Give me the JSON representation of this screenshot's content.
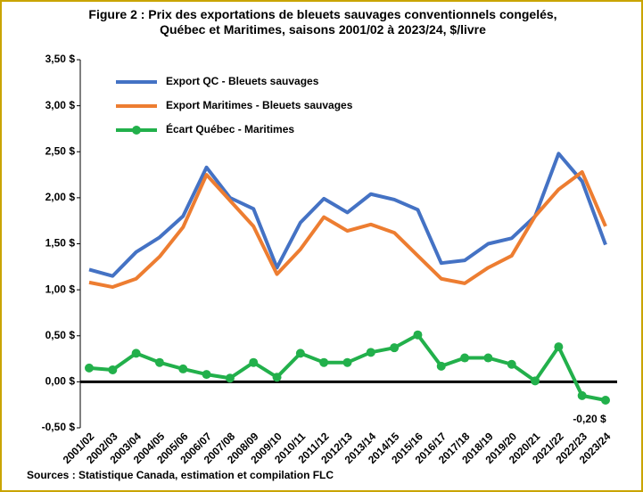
{
  "chart_data": {
    "type": "line",
    "title": "Figure 2 : Prix des exportations de bleuets sauvages conventionnels congelés, Québec et Maritimes, saisons 2001/02 à 2023/24, $/livre",
    "source": "Sources : Statistique Canada, estimation et compilation FLC",
    "categories": [
      "2001/02",
      "2002/03",
      "2003/04",
      "2004/05",
      "2005/06",
      "2006/07",
      "2007/08",
      "2008/09",
      "2009/10",
      "2010/11",
      "2011/12",
      "2012/13",
      "2013/14",
      "2014/15",
      "2015/16",
      "2016/17",
      "2017/18",
      "2018/19",
      "2019/20",
      "2020/21",
      "2021/22",
      "2022/23",
      "2023/24"
    ],
    "series": [
      {
        "name": "Export QC - Bleuets sauvages",
        "color": "#4472c4",
        "markers": false,
        "values": [
          1.22,
          1.15,
          1.41,
          1.57,
          1.8,
          2.33,
          2.0,
          1.88,
          1.24,
          1.73,
          1.99,
          1.84,
          2.04,
          1.98,
          1.87,
          1.29,
          1.32,
          1.5,
          1.56,
          1.8,
          2.48,
          2.18,
          1.49
        ]
      },
      {
        "name": "Export Maritimes - Bleuets sauvages",
        "color": "#ed7d31",
        "markers": false,
        "values": [
          1.08,
          1.03,
          1.12,
          1.36,
          1.68,
          2.25,
          1.97,
          1.69,
          1.17,
          1.44,
          1.79,
          1.64,
          1.71,
          1.62,
          1.37,
          1.12,
          1.07,
          1.24,
          1.37,
          1.8,
          2.09,
          2.28,
          1.69
        ]
      },
      {
        "name": "Écart Québec - Maritimes",
        "color": "#22b04b",
        "markers": true,
        "values": [
          0.15,
          0.13,
          0.31,
          0.21,
          0.14,
          0.08,
          0.04,
          0.21,
          0.05,
          0.31,
          0.21,
          0.21,
          0.32,
          0.37,
          0.51,
          0.17,
          0.26,
          0.26,
          0.19,
          0.01,
          0.38,
          -0.15,
          -0.2
        ],
        "value_labels": [
          null,
          null,
          null,
          null,
          null,
          null,
          null,
          null,
          null,
          null,
          null,
          null,
          null,
          null,
          null,
          null,
          null,
          null,
          null,
          null,
          null,
          null,
          "-0,20 $"
        ]
      }
    ],
    "ylim": [
      -0.5,
      3.5
    ],
    "yticks": [
      {
        "value": -0.5,
        "label": "-0,50 $"
      },
      {
        "value": 0,
        "label": "0,00 $"
      },
      {
        "value": 0.5,
        "label": "0,50 $"
      },
      {
        "value": 1,
        "label": "1,00 $"
      },
      {
        "value": 1.5,
        "label": "1,50 $"
      },
      {
        "value": 2,
        "label": "2,00 $"
      },
      {
        "value": 2.5,
        "label": "2,50 $"
      },
      {
        "value": 3,
        "label": "3,00 $"
      },
      {
        "value": 3.5,
        "label": "3,50 $"
      }
    ],
    "grid": false,
    "legend": "top-left"
  }
}
